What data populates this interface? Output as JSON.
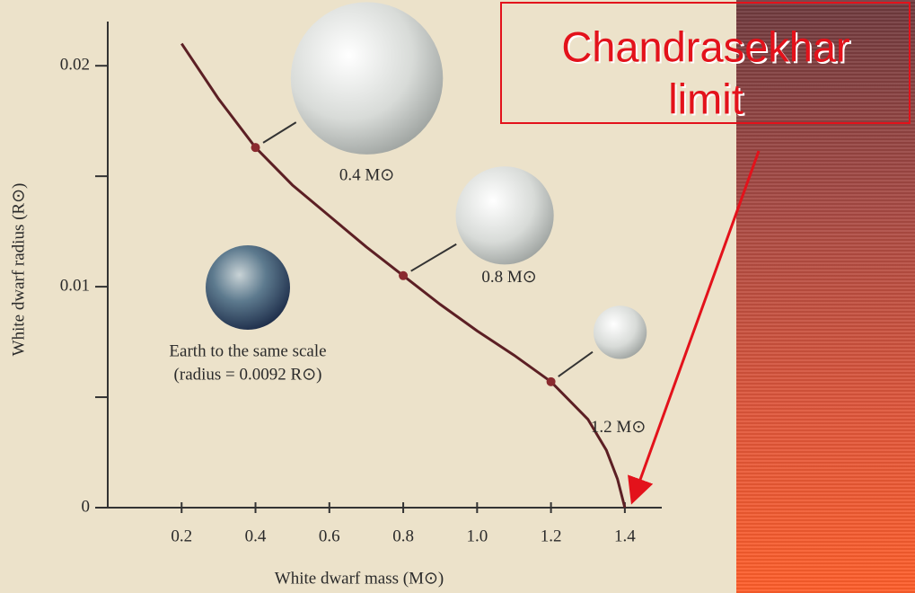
{
  "chart_data": {
    "type": "line",
    "x_label": "White dwarf mass (M⊙)",
    "y_label": "White dwarf radius (R⊙)",
    "x": [
      0.2,
      0.3,
      0.4,
      0.5,
      0.6,
      0.7,
      0.8,
      0.9,
      1.0,
      1.1,
      1.2,
      1.3,
      1.35,
      1.38,
      1.4
    ],
    "series": [
      {
        "color": "#5c1f24",
        "values": [
          0.021,
          0.0185,
          0.0163,
          0.0146,
          0.0132,
          0.0118,
          0.0105,
          0.0092,
          0.008,
          0.0069,
          0.0057,
          0.004,
          0.0026,
          0.0013,
          0
        ]
      }
    ],
    "xlim": [
      0,
      1.5
    ],
    "ylim": [
      0,
      0.022
    ],
    "xticks": [
      0.2,
      0.4,
      0.6,
      0.8,
      {
        "value": 1,
        "label": "1.0"
      },
      1.2,
      1.4
    ],
    "yticks": [
      0,
      0.01,
      0.02
    ],
    "yminor_ticks": [
      0.005,
      0.015
    ],
    "markers": [
      {
        "x": 0.4,
        "y": 0.0163,
        "label": "0.4 M⊙"
      },
      {
        "x": 0.8,
        "y": 0.0105,
        "label": "0.8 M⊙"
      },
      {
        "x": 1.2,
        "y": 0.0057,
        "label": "1.2 M⊙"
      }
    ],
    "earth_caption": [
      "Earth to the same scale",
      "(radius = 0.0092 R⊙)"
    ],
    "annotation": [
      "Chandrasekhar",
      "limit"
    ],
    "annotation_color": "#e3121b"
  }
}
